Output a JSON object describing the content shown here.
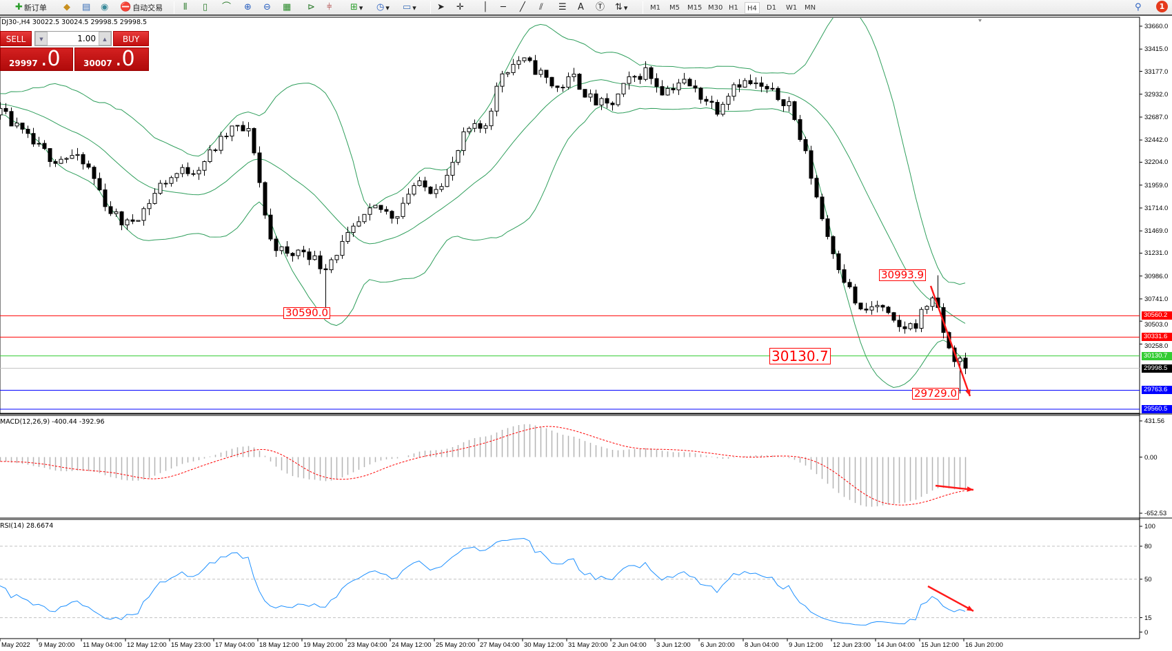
{
  "toolbar": {
    "new_order": "新订单",
    "auto_trading": "自动交易",
    "timeframes": [
      "M1",
      "M5",
      "M15",
      "M30",
      "H1",
      "H4",
      "D1",
      "W1",
      "MN"
    ],
    "active_timeframe": "H4",
    "notification_count": "1",
    "icons": [
      "new-order-icon",
      "history-icon",
      "terminal-icon",
      "signal-icon",
      "auto-trading-icon",
      "bar-chart-icon",
      "candlestick-icon",
      "line-chart-icon",
      "zoom-in-icon",
      "zoom-out-icon",
      "tile-windows-icon",
      "autoscroll-icon",
      "chart-shift-icon",
      "new-chart-icon",
      "periods-icon",
      "templates-icon",
      "cursor-icon",
      "crosshair-icon",
      "vertical-line-icon",
      "horizontal-line-icon",
      "trendline-icon",
      "fibonacci-icon",
      "fibo-fan-icon",
      "text-icon",
      "text-label-icon",
      "arrows-icon",
      "search-icon"
    ]
  },
  "chart_header": "DJ30-,H4  30022.5 30024.5 29998.5 29998.5",
  "trade_panel": {
    "sell_label": "SELL",
    "buy_label": "BUY",
    "lot": "1.00",
    "sell_price_main": "29997",
    "sell_price_big": ".0",
    "buy_price_main": "30007",
    "buy_price_big": ".0",
    "color": "#c81414"
  },
  "price_axis": [
    "33660.0",
    "33415.0",
    "33177.0",
    "32932.0",
    "32687.0",
    "32442.0",
    "32204.0",
    "31959.0",
    "31714.0",
    "31469.0",
    "31231.0",
    "30986.0",
    "30741.0",
    "30503.0",
    "30258.0"
  ],
  "levels": [
    {
      "price": "30560.2",
      "color": "#ff0000"
    },
    {
      "price": "30331.6",
      "color": "#ff0000"
    },
    {
      "price": "30130.7",
      "color": "#33cc33"
    },
    {
      "price": "29998.5",
      "color": "#000000",
      "line_color": "#c0c0c0"
    },
    {
      "price": "29763.6",
      "color": "#0000ff"
    },
    {
      "price": "29560.5",
      "color": "#0000ff"
    }
  ],
  "annotations": {
    "low_1": "30590.0",
    "high_1": "30993.9",
    "level_label": "30130.7",
    "low_2": "29729.0"
  },
  "macd": {
    "header": "MACD(12,26,9) -400.44 -392.96",
    "axis": [
      "431.56",
      "0.00",
      "-652.53"
    ]
  },
  "rsi": {
    "header": "RSI(14) 28.6674",
    "axis": [
      "100",
      "80",
      "50",
      "15",
      "0"
    ]
  },
  "time_axis": [
    "May 2022",
    "9 May 20:00",
    "11 May 04:00",
    "12 May 12:00",
    "15 May 23:00",
    "17 May 04:00",
    "18 May 12:00",
    "19 May 20:00",
    "23 May 04:00",
    "24 May 12:00",
    "25 May 20:00",
    "27 May 04:00",
    "30 May 12:00",
    "31 May 20:00",
    "2 Jun 04:00",
    "3 Jun 12:00",
    "6 Jun 20:00",
    "8 Jun 04:00",
    "9 Jun 12:00",
    "12 Jun 23:00",
    "14 Jun 04:00",
    "15 Jun 12:00",
    "16 Jun 20:00"
  ],
  "chart_data": {
    "type": "candlestick",
    "symbol": "DJ30-",
    "timeframe": "H4",
    "ylim": [
      29560.5,
      33660.0
    ],
    "price_path": [
      32741,
      32550,
      32370,
      32240,
      32270,
      32120,
      31710,
      31525,
      31700,
      31980,
      32100,
      32140,
      32360,
      32577,
      32510,
      31382,
      31200,
      31270,
      31070,
      31300,
      31542,
      31720,
      31620,
      31960,
      31920,
      32061,
      32541,
      32575,
      33170,
      33305,
      33180,
      32990,
      33110,
      32860,
      32790,
      33060,
      33185,
      32960,
      33080,
      32935,
      32780,
      33070,
      33040,
      32941,
      32840,
      32230,
      31500,
      30990,
      30590,
      30680,
      30423,
      30460,
      30780,
      30150,
      29998.5
    ],
    "last_close": 29998.5,
    "marked_low_1": 30590.0,
    "marked_high_1": 30993.9,
    "marked_low_2": 29729.0,
    "overlays": {
      "bollinger_bands": {
        "color": "#2e9e5b"
      }
    },
    "indicators": {
      "macd": {
        "params": [
          12,
          26,
          9
        ],
        "main": -400.44,
        "signal": -392.96,
        "ylim": [
          -652.53,
          431.56
        ],
        "hist_color": "#b4b4b4",
        "signal_color": "#ff0000"
      },
      "rsi": {
        "period": 14,
        "value": 28.6674,
        "ylim": [
          0,
          100
        ],
        "levels": [
          80,
          50,
          15
        ],
        "color": "#1e90ff"
      }
    }
  }
}
